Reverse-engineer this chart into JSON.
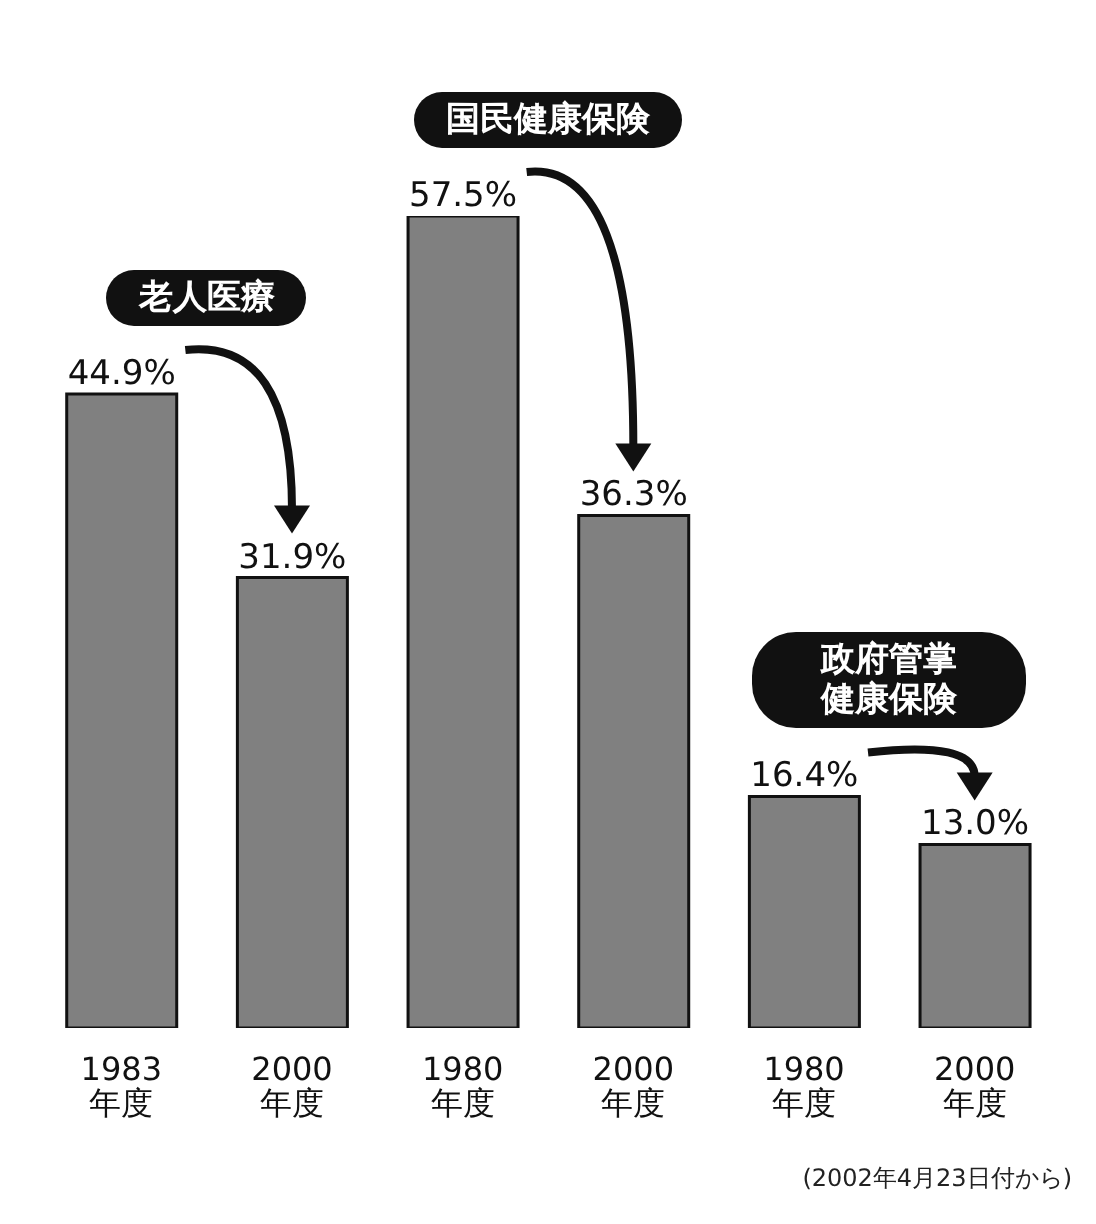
{
  "chart_data": {
    "type": "bar",
    "categories": [
      "1983\n年度",
      "2000\n年度",
      "1980\n年度",
      "2000\n年度",
      "1980\n年度",
      "2000\n年度"
    ],
    "values": [
      44.9,
      31.9,
      57.5,
      36.3,
      16.4,
      13.0
    ],
    "value_labels": [
      "44.9%",
      "31.9%",
      "57.5%",
      "36.3%",
      "16.4%",
      "13.0%"
    ],
    "color": "#808080",
    "annotations": [
      "老人医療",
      "国民健康保険",
      "政府管掌健康保険",
      "(2002年4月23日付から)"
    ]
  }
}
